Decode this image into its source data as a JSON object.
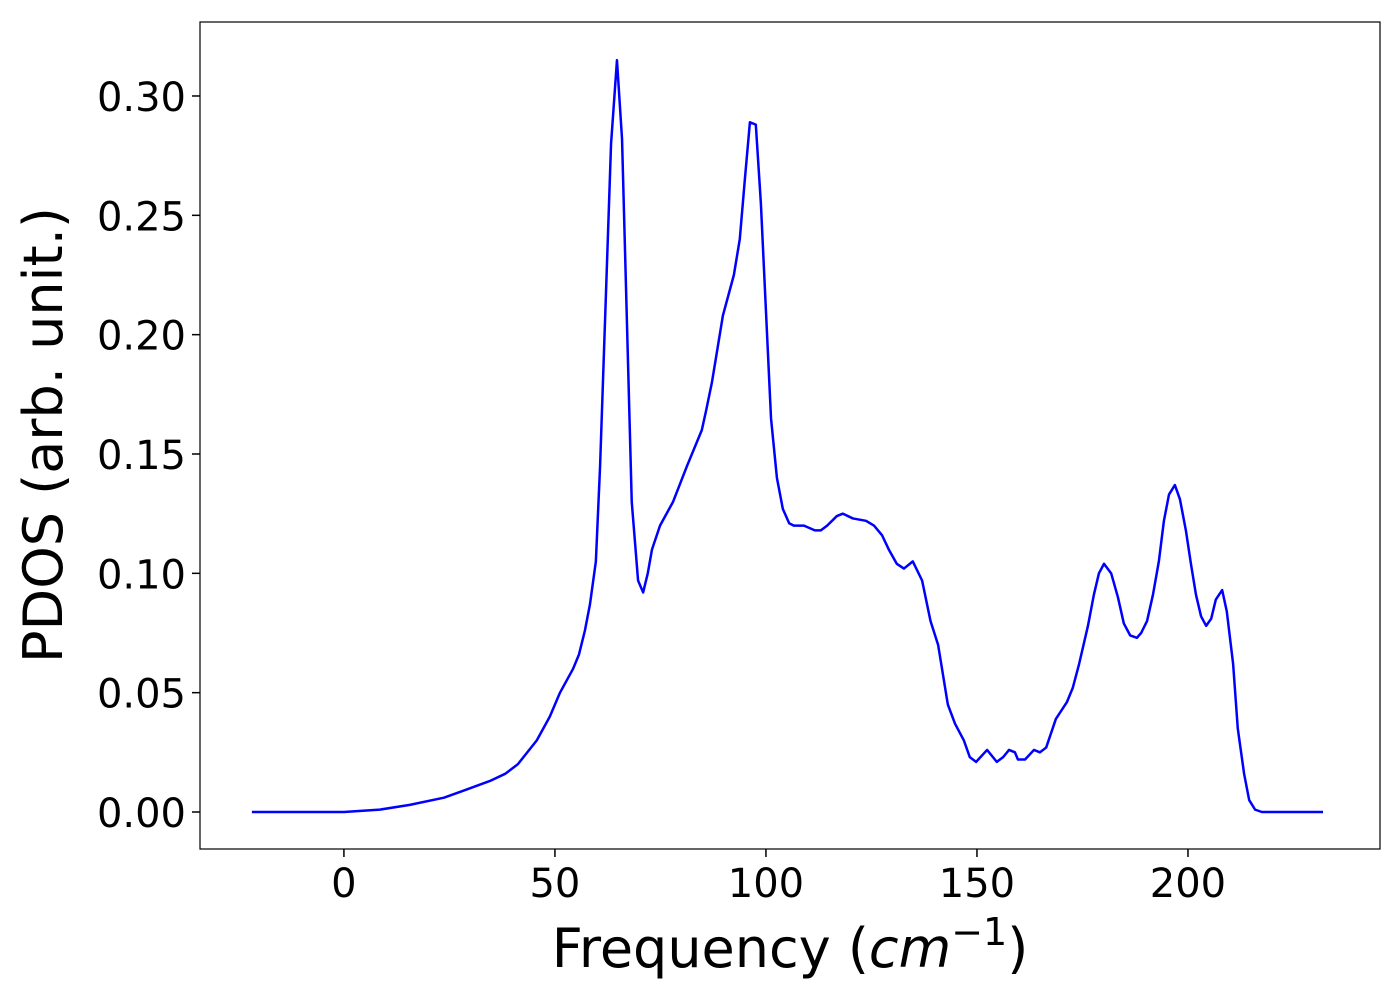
{
  "chart_data": {
    "type": "line",
    "xlabel": {
      "text": "Frequency (",
      "var": "cm",
      "sup": "−1",
      "close": ")"
    },
    "ylabel": "PDOS (arb. unit.)",
    "x": [
      -21.8,
      0,
      8.5,
      15.6,
      23.7,
      28.4,
      34.6,
      38.2,
      41.2,
      45.7,
      48.8,
      51.2,
      54.3,
      55.7,
      57.1,
      58.3,
      59.7,
      60.7,
      63.3,
      64.7,
      65.9,
      68.2,
      69.7,
      70.9,
      72,
      73,
      74.9,
      78,
      81.3,
      84.8,
      85.8,
      87.2,
      89.8,
      92.4,
      93.8,
      95,
      96.2,
      97.6,
      98.8,
      100,
      101.2,
      102.6,
      104,
      105.5,
      106.6,
      109,
      111.6,
      113,
      114.5,
      116.8,
      118.2,
      120.6,
      123.7,
      125.6,
      127.5,
      129.1,
      131,
      132.7,
      134.8,
      137,
      139,
      140.8,
      143.1,
      144.8,
      146.9,
      148.3,
      149.8,
      152.4,
      154.7,
      156.2,
      157.6,
      159,
      159.7,
      161.4,
      163.5,
      164.9,
      166.4,
      168.7,
      171.3,
      172.7,
      174.2,
      176.3,
      177.7,
      178.9,
      180.1,
      181.8,
      183.4,
      184.8,
      186.3,
      187.9,
      188.9,
      190.3,
      191.7,
      193.1,
      194.3,
      195.5,
      196.9,
      198.1,
      199.5,
      200.7,
      201.9,
      203.1,
      204.3,
      205.5,
      206.6,
      208.1,
      209.2,
      210.7,
      211.8,
      213.3,
      214.5,
      215.9,
      217.5,
      232
    ],
    "series": [
      {
        "color": "#0000ff",
        "values": [
          0,
          0,
          0.001,
          0.003,
          0.006,
          0.009,
          0.013,
          0.016,
          0.02,
          0.03,
          0.04,
          0.05,
          0.06,
          0.066,
          0.076,
          0.087,
          0.105,
          0.145,
          0.28,
          0.315,
          0.282,
          0.13,
          0.097,
          0.092,
          0.1,
          0.11,
          0.12,
          0.13,
          0.145,
          0.16,
          0.168,
          0.18,
          0.208,
          0.225,
          0.24,
          0.265,
          0.289,
          0.288,
          0.255,
          0.21,
          0.165,
          0.14,
          0.127,
          0.121,
          0.12,
          0.12,
          0.118,
          0.118,
          0.12,
          0.124,
          0.125,
          0.123,
          0.122,
          0.12,
          0.116,
          0.11,
          0.104,
          0.102,
          0.105,
          0.097,
          0.08,
          0.07,
          0.045,
          0.037,
          0.03,
          0.023,
          0.021,
          0.026,
          0.021,
          0.023,
          0.026,
          0.025,
          0.022,
          0.022,
          0.026,
          0.025,
          0.027,
          0.039,
          0.046,
          0.052,
          0.062,
          0.078,
          0.091,
          0.1,
          0.104,
          0.1,
          0.09,
          0.079,
          0.074,
          0.073,
          0.075,
          0.08,
          0.091,
          0.105,
          0.122,
          0.133,
          0.137,
          0.131,
          0.118,
          0.104,
          0.091,
          0.082,
          0.078,
          0.081,
          0.089,
          0.093,
          0.084,
          0.062,
          0.035,
          0.016,
          0.005,
          0.001,
          0,
          0
        ]
      }
    ],
    "xlim": [
      -34.1,
      245.5
    ],
    "ylim": [
      -0.0155,
      0.331
    ],
    "xticks": [
      0,
      50,
      100,
      150,
      200
    ],
    "yticks": [
      {
        "value": 0,
        "label": "0.00"
      },
      {
        "value": 0.05,
        "label": "0.05"
      },
      {
        "value": 0.1,
        "label": "0.10"
      },
      {
        "value": 0.15,
        "label": "0.15"
      },
      {
        "value": 0.2,
        "label": "0.20"
      },
      {
        "value": 0.25,
        "label": "0.25"
      },
      {
        "value": 0.3,
        "label": "0.30"
      }
    ]
  }
}
